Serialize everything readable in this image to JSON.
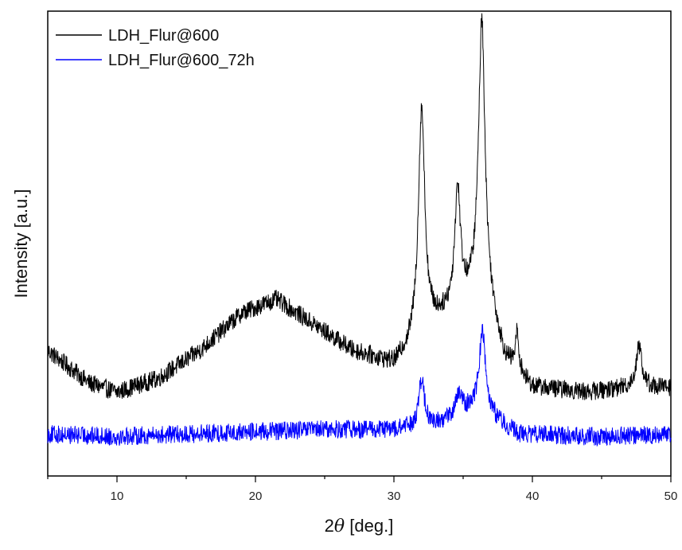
{
  "chart_data": {
    "type": "line",
    "xlabel_prefix": "2",
    "xlabel_symbol": "θ",
    "xlabel_suffix": " [deg.]",
    "ylabel": "Intensity [a.u.]",
    "xlim": [
      5,
      50
    ],
    "ylim": [
      0,
      100
    ],
    "x_ticks": [
      10,
      20,
      30,
      40,
      50
    ],
    "x_tick_labels": [
      "10",
      "20",
      "30",
      "40",
      "50"
    ],
    "y_ticks_visible": false,
    "grid": false,
    "legend_position": "top-left",
    "series": [
      {
        "name": "LDH_Flur@600",
        "color": "#000000",
        "baseline": [
          [
            5,
            27
          ],
          [
            8,
            20
          ],
          [
            10,
            18
          ],
          [
            13,
            21
          ],
          [
            16,
            27
          ],
          [
            19,
            35
          ],
          [
            21.5,
            38
          ],
          [
            24,
            33
          ],
          [
            27,
            27
          ],
          [
            30,
            24
          ],
          [
            31,
            27
          ],
          [
            32,
            31
          ],
          [
            33,
            33
          ],
          [
            34,
            35
          ],
          [
            35,
            37
          ],
          [
            36,
            39
          ],
          [
            37,
            35
          ],
          [
            38,
            25
          ],
          [
            40,
            19
          ],
          [
            44,
            18
          ],
          [
            47,
            19
          ],
          [
            50,
            19
          ]
        ],
        "peaks": [
          {
            "center": 32.0,
            "height": 48,
            "width": 0.28
          },
          {
            "center": 34.6,
            "height": 25,
            "width": 0.25
          },
          {
            "center": 36.35,
            "height": 60,
            "width": 0.28
          },
          {
            "center": 38.9,
            "height": 8,
            "width": 0.15
          },
          {
            "center": 47.7,
            "height": 9,
            "width": 0.25
          }
        ],
        "noise": 2.0
      },
      {
        "name": "LDH_Flur@600_72h",
        "color": "#0000ff",
        "baseline": [
          [
            5,
            9
          ],
          [
            10,
            8.5
          ],
          [
            20,
            9.5
          ],
          [
            25,
            10
          ],
          [
            30,
            10
          ],
          [
            33,
            11
          ],
          [
            35,
            14
          ],
          [
            36.3,
            16
          ],
          [
            37.5,
            12
          ],
          [
            39,
            9
          ],
          [
            45,
            8.5
          ],
          [
            50,
            9
          ]
        ],
        "peaks": [
          {
            "center": 32.0,
            "height": 10,
            "width": 0.25
          },
          {
            "center": 34.7,
            "height": 4,
            "width": 0.25
          },
          {
            "center": 36.4,
            "height": 16,
            "width": 0.25
          }
        ],
        "noise": 2.0
      }
    ]
  }
}
